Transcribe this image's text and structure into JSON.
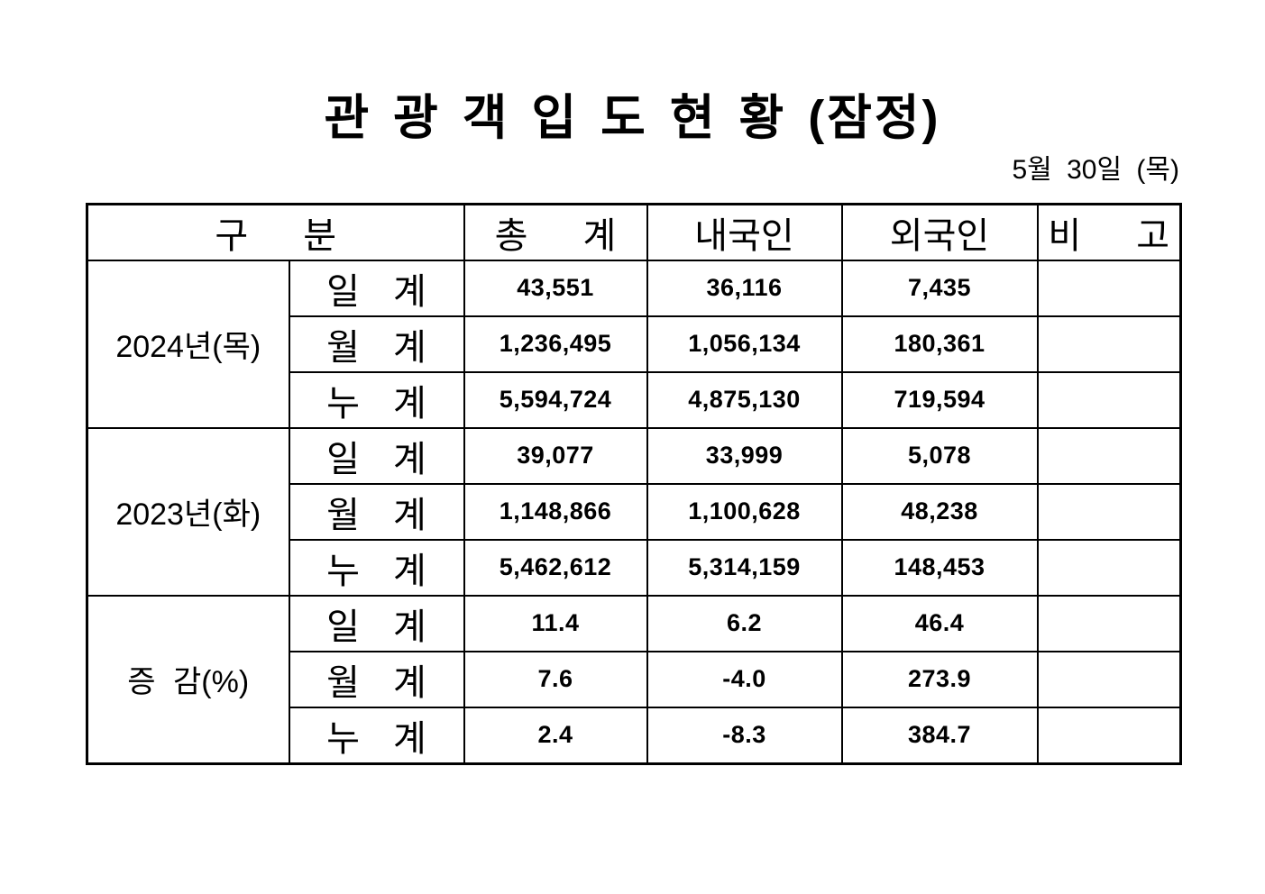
{
  "page": {
    "title": "관 광 객 입 도 현 황 (잠정)",
    "date_note": "5월 30일 (목)"
  },
  "table": {
    "headers": {
      "category": "구 분",
      "total": "총 계",
      "domestic": "내국인",
      "foreign": "외국인",
      "remarks": "비 고"
    },
    "groups": [
      {
        "label": "2024년(목)",
        "rows": [
          {
            "label": "일 계",
            "total": "43,551",
            "domestic": "36,116",
            "foreign": "7,435",
            "remarks": ""
          },
          {
            "label": "월 계",
            "total": "1,236,495",
            "domestic": "1,056,134",
            "foreign": "180,361",
            "remarks": ""
          },
          {
            "label": "누 계",
            "total": "5,594,724",
            "domestic": "4,875,130",
            "foreign": "719,594",
            "remarks": ""
          }
        ]
      },
      {
        "label": "2023년(화)",
        "rows": [
          {
            "label": "일 계",
            "total": "39,077",
            "domestic": "33,999",
            "foreign": "5,078",
            "remarks": ""
          },
          {
            "label": "월 계",
            "total": "1,148,866",
            "domestic": "1,100,628",
            "foreign": "48,238",
            "remarks": ""
          },
          {
            "label": "누 계",
            "total": "5,462,612",
            "domestic": "5,314,159",
            "foreign": "148,453",
            "remarks": ""
          }
        ]
      },
      {
        "label": "증 감(%)",
        "rows": [
          {
            "label": "일 계",
            "total": "11.4",
            "domestic": "6.2",
            "foreign": "46.4",
            "remarks": ""
          },
          {
            "label": "월 계",
            "total": "7.6",
            "domestic": "-4.0",
            "foreign": "273.9",
            "remarks": ""
          },
          {
            "label": "누 계",
            "total": "2.4",
            "domestic": "-8.3",
            "foreign": "384.7",
            "remarks": ""
          }
        ]
      }
    ]
  }
}
